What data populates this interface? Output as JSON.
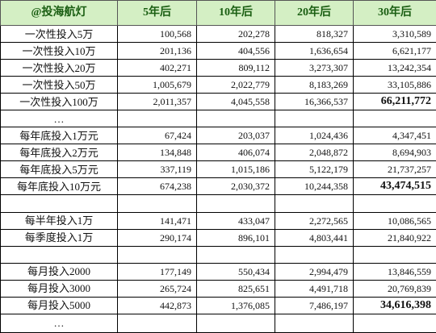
{
  "table": {
    "header": [
      "@投海航灯",
      "5年后",
      "10年后",
      "20年后",
      "30年后"
    ],
    "rows": [
      [
        "一次性投入5万",
        "100,568",
        "202,278",
        "818,327",
        "3,310,589"
      ],
      [
        "一次性投入10万",
        "201,136",
        "404,556",
        "1,636,654",
        "6,621,177"
      ],
      [
        "一次性投入20万",
        "402,271",
        "809,112",
        "3,273,307",
        "13,242,354"
      ],
      [
        "一次性投入50万",
        "1,005,679",
        "2,022,779",
        "8,183,269",
        "33,105,886"
      ],
      [
        "一次性投入100万",
        "2,011,357",
        "4,045,558",
        "16,366,537",
        "66,211,772"
      ],
      [
        "…"
      ],
      [
        "每年底投入1万元",
        "67,424",
        "203,037",
        "1,024,436",
        "4,347,451"
      ],
      [
        "每年底投入2万元",
        "134,848",
        "406,074",
        "2,048,872",
        "8,694,903"
      ],
      [
        "每年底投入5万元",
        "337,119",
        "1,015,186",
        "5,122,179",
        "21,737,257"
      ],
      [
        "每年底投入10万元",
        "674,238",
        "2,030,372",
        "10,244,358",
        "43,474,515"
      ],
      [],
      [
        "每半年投入1万",
        "141,471",
        "433,047",
        "2,272,565",
        "10,086,565"
      ],
      [
        "每季度投入1万",
        "290,174",
        "896,101",
        "4,803,441",
        "21,840,922"
      ],
      [],
      [
        "每月投入2000",
        "177,149",
        "550,434",
        "2,994,479",
        "13,846,559"
      ],
      [
        "每月投入3000",
        "265,724",
        "825,651",
        "4,491,718",
        "20,769,839"
      ],
      [
        "每月投入5000",
        "442,873",
        "1,376,085",
        "7,486,197",
        "34,616,398"
      ],
      [
        "…"
      ]
    ]
  }
}
